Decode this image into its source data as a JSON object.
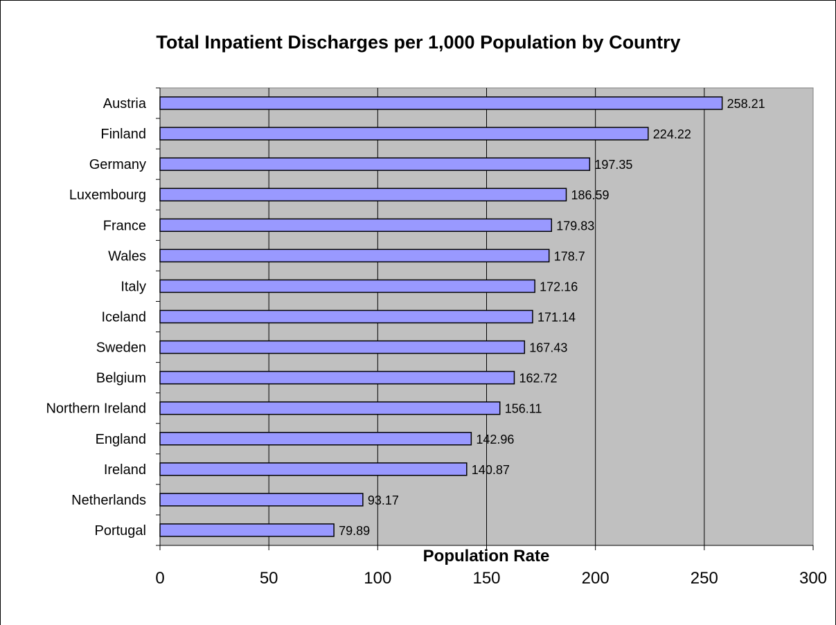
{
  "chart_data": {
    "type": "bar",
    "orientation": "horizontal",
    "title": "Total Inpatient Discharges per 1,000 Population by Country",
    "xlabel": "Population Rate",
    "ylabel": "",
    "categories": [
      "Austria",
      "Finland",
      "Germany",
      "Luxembourg",
      "France",
      "Wales",
      "Italy",
      "Iceland",
      "Sweden",
      "Belgium",
      "Northern Ireland",
      "England",
      "Ireland",
      "Netherlands",
      "Portugal"
    ],
    "values": [
      258.21,
      224.22,
      197.35,
      186.59,
      179.83,
      178.7,
      172.16,
      171.14,
      167.43,
      162.72,
      156.11,
      142.96,
      140.87,
      93.17,
      79.89
    ],
    "data_labels": [
      "258.21",
      "224.22",
      "197.35",
      "186.59",
      "179.83",
      "178.7",
      "172.16",
      "171.14",
      "167.43",
      "162.72",
      "156.11",
      "142.96",
      "140.87",
      "93.17",
      "79.89"
    ],
    "xlim": [
      0,
      300
    ],
    "xticks": [
      0,
      50,
      100,
      150,
      200,
      250,
      300
    ],
    "xtick_labels": [
      "0",
      "50",
      "100",
      "150",
      "200",
      "250",
      "300"
    ],
    "grid": "vertical",
    "legend": "none",
    "colors": {
      "bar_fill": "#9999ff",
      "bar_stroke": "#000000",
      "plot_background": "#c0c0c0",
      "gridline": "#000000",
      "page_background": "#ffffff"
    }
  }
}
